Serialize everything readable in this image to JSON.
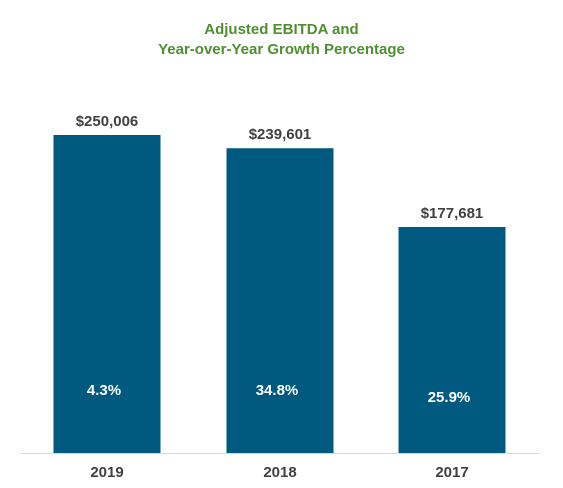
{
  "chart_data": {
    "type": "bar",
    "title": [
      "Adjusted EBITDA and",
      "Year-over-Year  Growth Percentage"
    ],
    "categories": [
      "2019",
      "2018",
      "2017"
    ],
    "values": [
      250006,
      239601,
      177681
    ],
    "value_labels": [
      "$250,006",
      "$239,601",
      "$177,681"
    ],
    "growth_labels": [
      "4.3%",
      "34.8%",
      "25.9%"
    ],
    "ylim": [
      0,
      320000
    ],
    "grid": false,
    "legend": "none",
    "colors": {
      "bar": "#005a7f",
      "title": "#4e8f2f",
      "value_label": "#404040",
      "growth_label": "#ffffff",
      "category_label": "#404040",
      "axis": "#d9d9d9"
    }
  }
}
